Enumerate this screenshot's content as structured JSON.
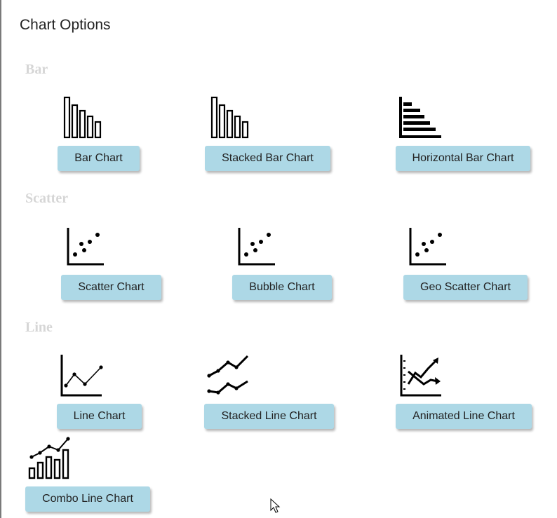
{
  "title": "Chart Options",
  "sections": {
    "bar": "Bar",
    "scatter": "Scatter",
    "line": "Line"
  },
  "buttons": {
    "bar_chart": "Bar Chart",
    "stacked_bar_chart": "Stacked Bar Chart",
    "horizontal_bar_chart": "Horizontal Bar Chart",
    "scatter_chart": "Scatter Chart",
    "bubble_chart": "Bubble Chart",
    "geo_scatter_chart": "Geo Scatter Chart",
    "line_chart": "Line Chart",
    "stacked_line_chart": "Stacked Line Chart",
    "animated_line_chart": "Animated Line Chart",
    "combo_line_chart": "Combo Line Chart"
  },
  "colors": {
    "button_bg": "#add8e6",
    "section_text": "#d6d6d6"
  },
  "icons": [
    "bar-chart-icon",
    "stacked-bar-chart-icon",
    "horizontal-bar-chart-icon",
    "scatter-chart-icon",
    "bubble-chart-icon",
    "geo-scatter-chart-icon",
    "line-chart-icon",
    "stacked-line-chart-icon",
    "animated-line-chart-icon",
    "combo-line-chart-icon",
    "mouse-cursor-icon"
  ]
}
